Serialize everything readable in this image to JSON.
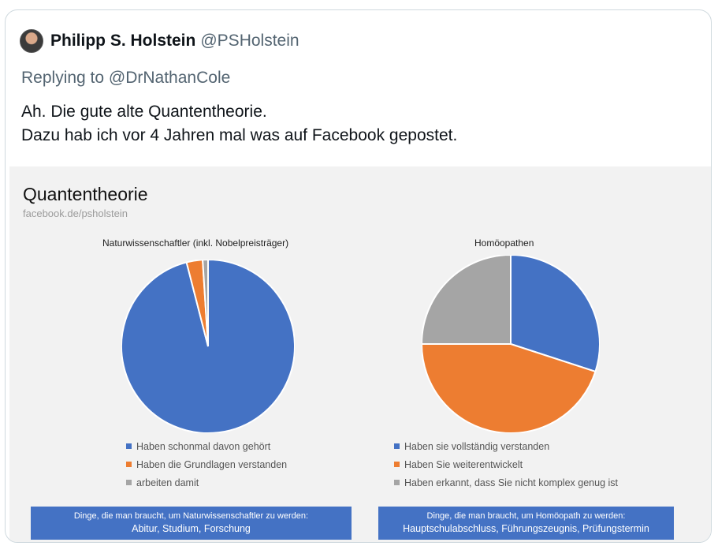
{
  "tweet": {
    "author_name": "Philipp S. Holstein",
    "author_handle": "@PSHolstein",
    "reply_prefix": "Replying to ",
    "reply_to": "@DrNathanCole",
    "text_line1": "Ah. Die gute alte Quantentheorie.",
    "text_line2": "Dazu hab ich vor 4 Jahren mal was auf Facebook gepostet."
  },
  "image": {
    "title": "Quantentheorie",
    "source": "facebook.de/psholstein"
  },
  "colors": {
    "blue": "#4472c4",
    "orange": "#ed7d31",
    "gray": "#a5a5a5"
  },
  "chart_data": [
    {
      "type": "pie",
      "title": "Naturwissenschaftler  (inkl. Nobelpreisträger)",
      "labels": [
        "Haben schonmal davon gehört",
        "Haben die Grundlagen verstanden",
        "arbeiten damit"
      ],
      "values": [
        96,
        3,
        1
      ],
      "colors": [
        "#4472c4",
        "#ed7d31",
        "#a5a5a5"
      ],
      "footer_line1": "Dinge, die man braucht, um Naturwissenschaftler zu werden:",
      "footer_line2": "Abitur, Studium, Forschung"
    },
    {
      "type": "pie",
      "title": "Homöopathen",
      "labels": [
        "Haben sie vollständig verstanden",
        "Haben Sie weiterentwickelt",
        "Haben erkannt, dass Sie nicht komplex genug ist"
      ],
      "values": [
        30,
        45,
        25
      ],
      "colors": [
        "#4472c4",
        "#ed7d31",
        "#a5a5a5"
      ],
      "footer_line1": "Dinge, die man braucht, um Homöopath zu werden:",
      "footer_line2": "Hauptschulabschluss, Führungszeugnis, Prüfungstermin"
    }
  ]
}
